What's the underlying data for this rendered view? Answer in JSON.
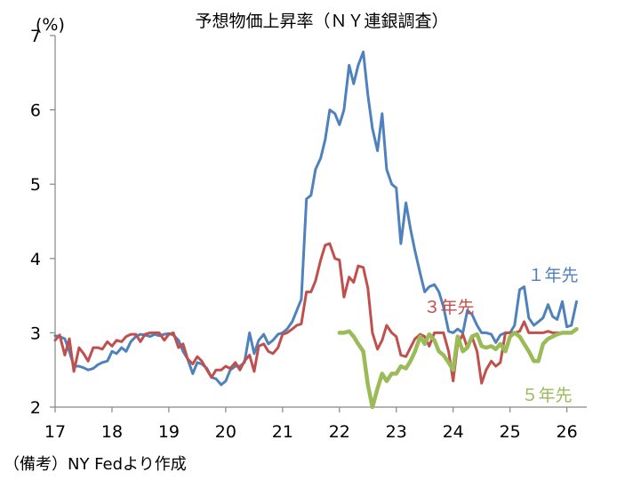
{
  "chart_data": {
    "type": "line",
    "title": "予想物価上昇率（ＮＹ連銀調査）",
    "ylabel": "(%)",
    "xlabel": "",
    "ylim": [
      2,
      7
    ],
    "y_ticks": [
      "2",
      "3",
      "4",
      "5",
      "6",
      "7"
    ],
    "xlim": [
      2017,
      2026.35
    ],
    "x_ticks": [
      {
        "label": "17",
        "x": 2017
      },
      {
        "label": "18",
        "x": 2018
      },
      {
        "label": "19",
        "x": 2019
      },
      {
        "label": "20",
        "x": 2020
      },
      {
        "label": "21",
        "x": 2021
      },
      {
        "label": "22",
        "x": 2022
      },
      {
        "label": "23",
        "x": 2023
      },
      {
        "label": "24",
        "x": 2024
      },
      {
        "label": "25",
        "x": 2025
      },
      {
        "label": "26",
        "x": 2026
      }
    ],
    "grid": false,
    "series": [
      {
        "name": "1年先",
        "color": "#4f81bd",
        "points": [
          [
            2017.0,
            2.96
          ],
          [
            2017.08,
            2.95
          ],
          [
            2017.17,
            2.92
          ],
          [
            2017.25,
            2.75
          ],
          [
            2017.33,
            2.55
          ],
          [
            2017.42,
            2.55
          ],
          [
            2017.5,
            2.53
          ],
          [
            2017.58,
            2.5
          ],
          [
            2017.67,
            2.52
          ],
          [
            2017.75,
            2.57
          ],
          [
            2017.83,
            2.6
          ],
          [
            2017.92,
            2.62
          ],
          [
            2018.0,
            2.75
          ],
          [
            2018.08,
            2.72
          ],
          [
            2018.17,
            2.8
          ],
          [
            2018.25,
            2.75
          ],
          [
            2018.33,
            2.88
          ],
          [
            2018.42,
            2.95
          ],
          [
            2018.5,
            2.98
          ],
          [
            2018.58,
            2.97
          ],
          [
            2018.67,
            2.95
          ],
          [
            2018.75,
            2.98
          ],
          [
            2018.83,
            2.96
          ],
          [
            2018.92,
            2.98
          ],
          [
            2019.0,
            2.99
          ],
          [
            2019.08,
            2.97
          ],
          [
            2019.17,
            2.9
          ],
          [
            2019.25,
            2.75
          ],
          [
            2019.33,
            2.65
          ],
          [
            2019.42,
            2.45
          ],
          [
            2019.5,
            2.6
          ],
          [
            2019.58,
            2.58
          ],
          [
            2019.67,
            2.52
          ],
          [
            2019.75,
            2.4
          ],
          [
            2019.83,
            2.38
          ],
          [
            2019.92,
            2.3
          ],
          [
            2020.0,
            2.35
          ],
          [
            2020.08,
            2.5
          ],
          [
            2020.17,
            2.55
          ],
          [
            2020.25,
            2.55
          ],
          [
            2020.33,
            2.6
          ],
          [
            2020.42,
            3.0
          ],
          [
            2020.5,
            2.72
          ],
          [
            2020.58,
            2.9
          ],
          [
            2020.67,
            2.98
          ],
          [
            2020.75,
            2.85
          ],
          [
            2020.83,
            2.9
          ],
          [
            2020.92,
            2.98
          ],
          [
            2021.0,
            3.0
          ],
          [
            2021.08,
            3.05
          ],
          [
            2021.17,
            3.15
          ],
          [
            2021.25,
            3.3
          ],
          [
            2021.33,
            3.45
          ],
          [
            2021.42,
            4.8
          ],
          [
            2021.5,
            4.85
          ],
          [
            2021.58,
            5.2
          ],
          [
            2021.67,
            5.35
          ],
          [
            2021.75,
            5.6
          ],
          [
            2021.83,
            6.0
          ],
          [
            2021.92,
            5.95
          ],
          [
            2022.0,
            5.8
          ],
          [
            2022.08,
            6.0
          ],
          [
            2022.17,
            6.6
          ],
          [
            2022.25,
            6.35
          ],
          [
            2022.33,
            6.6
          ],
          [
            2022.42,
            6.78
          ],
          [
            2022.5,
            6.2
          ],
          [
            2022.58,
            5.75
          ],
          [
            2022.67,
            5.45
          ],
          [
            2022.75,
            5.95
          ],
          [
            2022.83,
            5.2
          ],
          [
            2022.92,
            5.0
          ],
          [
            2023.0,
            4.95
          ],
          [
            2023.08,
            4.2
          ],
          [
            2023.17,
            4.75
          ],
          [
            2023.25,
            4.4
          ],
          [
            2023.33,
            4.1
          ],
          [
            2023.42,
            3.8
          ],
          [
            2023.5,
            3.55
          ],
          [
            2023.58,
            3.62
          ],
          [
            2023.67,
            3.65
          ],
          [
            2023.75,
            3.55
          ],
          [
            2023.83,
            3.35
          ],
          [
            2023.92,
            3.02
          ],
          [
            2024.0,
            3.0
          ],
          [
            2024.08,
            3.05
          ],
          [
            2024.17,
            3.0
          ],
          [
            2024.25,
            3.3
          ],
          [
            2024.33,
            3.25
          ],
          [
            2024.42,
            3.1
          ],
          [
            2024.5,
            3.0
          ],
          [
            2024.58,
            3.0
          ],
          [
            2024.67,
            2.98
          ],
          [
            2024.75,
            2.87
          ],
          [
            2024.83,
            2.97
          ],
          [
            2024.92,
            3.0
          ],
          [
            2025.0,
            3.0
          ],
          [
            2025.08,
            3.1
          ],
          [
            2025.17,
            3.58
          ],
          [
            2025.25,
            3.62
          ],
          [
            2025.33,
            3.2
          ],
          [
            2025.42,
            3.1
          ],
          [
            2025.5,
            3.15
          ],
          [
            2025.58,
            3.2
          ],
          [
            2025.67,
            3.38
          ],
          [
            2025.75,
            3.22
          ],
          [
            2025.83,
            3.18
          ],
          [
            2025.92,
            3.42
          ],
          [
            2026.0,
            3.08
          ],
          [
            2026.08,
            3.1
          ],
          [
            2026.17,
            3.42
          ]
        ]
      },
      {
        "name": "３年先",
        "color": "#c0504d",
        "points": [
          [
            2017.0,
            2.9
          ],
          [
            2017.08,
            2.97
          ],
          [
            2017.17,
            2.7
          ],
          [
            2017.25,
            2.92
          ],
          [
            2017.33,
            2.48
          ],
          [
            2017.42,
            2.8
          ],
          [
            2017.5,
            2.72
          ],
          [
            2017.58,
            2.62
          ],
          [
            2017.67,
            2.8
          ],
          [
            2017.75,
            2.8
          ],
          [
            2017.83,
            2.78
          ],
          [
            2017.92,
            2.88
          ],
          [
            2018.0,
            2.82
          ],
          [
            2018.08,
            2.9
          ],
          [
            2018.17,
            2.88
          ],
          [
            2018.25,
            2.95
          ],
          [
            2018.33,
            2.98
          ],
          [
            2018.42,
            2.98
          ],
          [
            2018.5,
            2.88
          ],
          [
            2018.58,
            2.98
          ],
          [
            2018.67,
            3.0
          ],
          [
            2018.75,
            3.0
          ],
          [
            2018.83,
            3.0
          ],
          [
            2018.92,
            2.9
          ],
          [
            2019.0,
            2.98
          ],
          [
            2019.08,
            3.0
          ],
          [
            2019.17,
            2.8
          ],
          [
            2019.25,
            2.85
          ],
          [
            2019.33,
            2.65
          ],
          [
            2019.42,
            2.58
          ],
          [
            2019.5,
            2.68
          ],
          [
            2019.58,
            2.62
          ],
          [
            2019.67,
            2.5
          ],
          [
            2019.75,
            2.4
          ],
          [
            2019.83,
            2.5
          ],
          [
            2019.92,
            2.5
          ],
          [
            2020.0,
            2.55
          ],
          [
            2020.08,
            2.52
          ],
          [
            2020.17,
            2.6
          ],
          [
            2020.25,
            2.5
          ],
          [
            2020.33,
            2.62
          ],
          [
            2020.42,
            2.7
          ],
          [
            2020.5,
            2.48
          ],
          [
            2020.58,
            2.82
          ],
          [
            2020.67,
            2.85
          ],
          [
            2020.75,
            2.75
          ],
          [
            2020.83,
            2.72
          ],
          [
            2020.92,
            2.8
          ],
          [
            2021.0,
            2.98
          ],
          [
            2021.08,
            3.0
          ],
          [
            2021.17,
            3.05
          ],
          [
            2021.25,
            3.1
          ],
          [
            2021.33,
            3.12
          ],
          [
            2021.42,
            3.55
          ],
          [
            2021.5,
            3.55
          ],
          [
            2021.58,
            3.7
          ],
          [
            2021.67,
            3.98
          ],
          [
            2021.75,
            4.18
          ],
          [
            2021.83,
            4.2
          ],
          [
            2021.92,
            4.0
          ],
          [
            2022.0,
            3.98
          ],
          [
            2022.08,
            3.48
          ],
          [
            2022.17,
            3.75
          ],
          [
            2022.25,
            3.68
          ],
          [
            2022.33,
            3.9
          ],
          [
            2022.42,
            3.88
          ],
          [
            2022.5,
            3.6
          ],
          [
            2022.58,
            3.0
          ],
          [
            2022.67,
            2.78
          ],
          [
            2022.75,
            2.9
          ],
          [
            2022.83,
            3.1
          ],
          [
            2022.92,
            3.0
          ],
          [
            2023.0,
            2.95
          ],
          [
            2023.08,
            2.7
          ],
          [
            2023.17,
            2.68
          ],
          [
            2023.25,
            2.8
          ],
          [
            2023.33,
            2.92
          ],
          [
            2023.42,
            2.98
          ],
          [
            2023.5,
            2.95
          ],
          [
            2023.58,
            2.82
          ],
          [
            2023.67,
            3.0
          ],
          [
            2023.75,
            3.0
          ],
          [
            2023.83,
            3.0
          ],
          [
            2023.92,
            2.75
          ],
          [
            2024.0,
            2.35
          ],
          [
            2024.08,
            2.85
          ],
          [
            2024.17,
            2.98
          ],
          [
            2024.25,
            2.8
          ],
          [
            2024.33,
            2.95
          ],
          [
            2024.42,
            2.75
          ],
          [
            2024.5,
            2.32
          ],
          [
            2024.58,
            2.5
          ],
          [
            2024.67,
            2.62
          ],
          [
            2024.75,
            2.55
          ],
          [
            2024.83,
            2.6
          ],
          [
            2024.92,
            3.0
          ],
          [
            2025.0,
            3.0
          ],
          [
            2025.08,
            3.0
          ],
          [
            2025.17,
            3.02
          ],
          [
            2025.25,
            3.15
          ],
          [
            2025.33,
            3.0
          ],
          [
            2025.42,
            3.0
          ],
          [
            2025.5,
            3.0
          ],
          [
            2025.58,
            3.0
          ],
          [
            2025.67,
            3.02
          ],
          [
            2025.75,
            3.0
          ],
          [
            2025.83,
            3.0
          ],
          [
            2025.92,
            3.0
          ],
          [
            2026.0,
            3.0
          ],
          [
            2026.08,
            3.0
          ],
          [
            2026.17,
            3.05
          ]
        ]
      },
      {
        "name": "５年先",
        "color": "#9bbb59",
        "points": [
          [
            2022.0,
            3.0
          ],
          [
            2022.08,
            3.0
          ],
          [
            2022.17,
            3.02
          ],
          [
            2022.25,
            2.95
          ],
          [
            2022.33,
            2.85
          ],
          [
            2022.42,
            2.75
          ],
          [
            2022.5,
            2.3
          ],
          [
            2022.58,
            2.0
          ],
          [
            2022.67,
            2.25
          ],
          [
            2022.75,
            2.45
          ],
          [
            2022.83,
            2.35
          ],
          [
            2022.92,
            2.45
          ],
          [
            2023.0,
            2.45
          ],
          [
            2023.08,
            2.55
          ],
          [
            2023.17,
            2.52
          ],
          [
            2023.25,
            2.62
          ],
          [
            2023.33,
            2.75
          ],
          [
            2023.42,
            2.95
          ],
          [
            2023.5,
            2.85
          ],
          [
            2023.58,
            2.98
          ],
          [
            2023.67,
            2.9
          ],
          [
            2023.75,
            2.75
          ],
          [
            2023.83,
            2.7
          ],
          [
            2023.92,
            2.6
          ],
          [
            2024.0,
            2.5
          ],
          [
            2024.08,
            2.95
          ],
          [
            2024.17,
            2.75
          ],
          [
            2024.25,
            2.8
          ],
          [
            2024.33,
            2.95
          ],
          [
            2024.42,
            2.98
          ],
          [
            2024.5,
            2.82
          ],
          [
            2024.58,
            2.8
          ],
          [
            2024.67,
            2.82
          ],
          [
            2024.75,
            2.78
          ],
          [
            2024.83,
            2.85
          ],
          [
            2024.92,
            2.75
          ],
          [
            2025.0,
            2.95
          ],
          [
            2025.08,
            3.0
          ],
          [
            2025.17,
            2.95
          ],
          [
            2025.25,
            2.85
          ],
          [
            2025.33,
            2.75
          ],
          [
            2025.42,
            2.62
          ],
          [
            2025.5,
            2.62
          ],
          [
            2025.58,
            2.85
          ],
          [
            2025.67,
            2.92
          ],
          [
            2025.75,
            2.95
          ],
          [
            2025.83,
            2.98
          ],
          [
            2025.92,
            3.0
          ],
          [
            2026.0,
            3.0
          ],
          [
            2026.08,
            3.0
          ],
          [
            2026.17,
            3.05
          ]
        ]
      }
    ],
    "series_labels": [
      {
        "text": "１年先",
        "series": 0,
        "color": "#4f81bd"
      },
      {
        "text": "３年先",
        "series": 1,
        "color": "#c0504d"
      },
      {
        "text": "５年先",
        "series": 2,
        "color": "#9bbb59"
      }
    ]
  },
  "footnote": "（備考）NY Fedより作成"
}
